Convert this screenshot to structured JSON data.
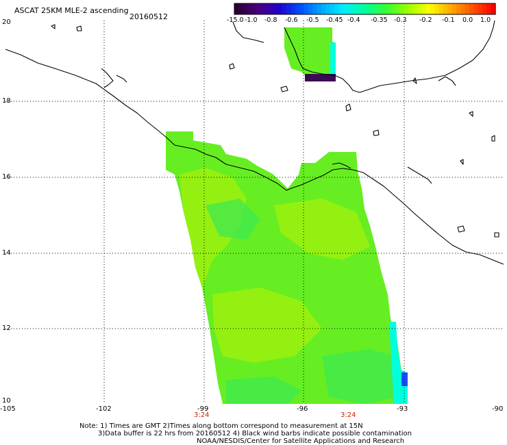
{
  "title": "ASCAT 25KM MLE-2 ascending",
  "date": "20160512",
  "colorbar": {
    "labels": [
      "-15.0",
      "-1.0",
      "-0.8",
      "-0.6",
      "-0.5",
      "-0.45",
      "-0.4",
      "-0.35",
      "-0.3",
      "-0.2",
      "-0.1",
      "0.0",
      "1.0"
    ],
    "colors": [
      "#2a0033",
      "#4a0080",
      "#2200cc",
      "#0050ff",
      "#00a8ff",
      "#00eeff",
      "#00ff99",
      "#33ff33",
      "#99ff00",
      "#ffff00",
      "#ffaa00",
      "#ff5500",
      "#ff0000"
    ]
  },
  "axes": {
    "lon_labels": [
      "-105",
      "-102",
      "-99",
      "-96",
      "-93",
      "-90"
    ],
    "lat_labels": [
      "20",
      "18",
      "16",
      "14",
      "12",
      "10"
    ]
  },
  "pass_times": [
    "3:24",
    "3:24"
  ],
  "notes": {
    "line1": "Note: 1) Times are GMT 2)Times along bottom correspond to measurement at 15N",
    "line2": "3)Data buffer is 22 hrs from 20160512 4) Black wind barbs indicate possible contamination",
    "line3": "NOAA/NESDIS/Center for Satellite Applications and Research"
  },
  "colors": {
    "swath_main": "#66ee22",
    "swath_alt": "#99f010",
    "swath_patch": "#3fe850",
    "swath_blue": "#1a4cff",
    "swath_cyan": "#00ffdd",
    "swath_purple": "#3a0a55",
    "grid": "#000000",
    "coast": "#000000"
  }
}
